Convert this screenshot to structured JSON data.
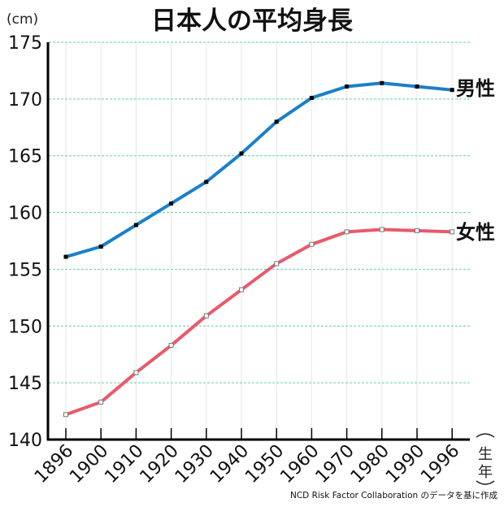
{
  "header": {
    "title": "日本人の平均身長",
    "unit_label": "(cm)"
  },
  "x_axis_title": [
    "生",
    "年"
  ],
  "source_note": "NCD Risk Factor Collaboration のデータを基に作成",
  "colors": {
    "male": "#1a7fcc",
    "female": "#e85a6a",
    "grid": "#5fcfb0",
    "vgrid": "#e6e6e6",
    "axis": "#000000"
  },
  "chart_data": {
    "type": "line",
    "title": "日本人の平均身長",
    "xlabel": "生年",
    "ylabel": "(cm)",
    "ylim": [
      140,
      175
    ],
    "yticks": [
      140,
      145,
      150,
      155,
      160,
      165,
      170,
      175
    ],
    "grid": true,
    "legend_position": "inline-right",
    "categories": [
      "1896",
      "1900",
      "1910",
      "1920",
      "1930",
      "1940",
      "1950",
      "1960",
      "1970",
      "1980",
      "1990",
      "1996"
    ],
    "series": [
      {
        "name": "男性",
        "color": "#1a7fcc",
        "values": [
          156.1,
          157.0,
          158.9,
          160.8,
          162.7,
          165.2,
          168.0,
          170.1,
          171.1,
          171.4,
          171.1,
          170.8
        ]
      },
      {
        "name": "女性",
        "color": "#e85a6a",
        "values": [
          142.2,
          143.3,
          145.9,
          148.3,
          150.9,
          153.2,
          155.5,
          157.2,
          158.3,
          158.5,
          158.4,
          158.3
        ]
      }
    ],
    "annotations": [
      "NCD Risk Factor Collaboration のデータを基に作成"
    ]
  }
}
